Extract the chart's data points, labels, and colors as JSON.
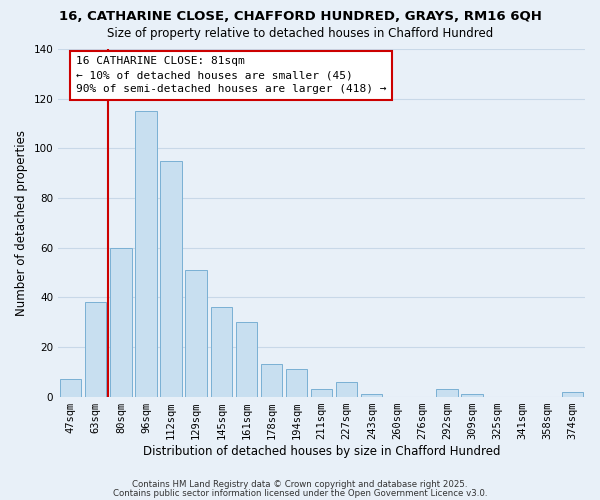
{
  "title1": "16, CATHARINE CLOSE, CHAFFORD HUNDRED, GRAYS, RM16 6QH",
  "title2": "Size of property relative to detached houses in Chafford Hundred",
  "xlabel": "Distribution of detached houses by size in Chafford Hundred",
  "ylabel": "Number of detached properties",
  "bar_labels": [
    "47sqm",
    "63sqm",
    "80sqm",
    "96sqm",
    "112sqm",
    "129sqm",
    "145sqm",
    "161sqm",
    "178sqm",
    "194sqm",
    "211sqm",
    "227sqm",
    "243sqm",
    "260sqm",
    "276sqm",
    "292sqm",
    "309sqm",
    "325sqm",
    "341sqm",
    "358sqm",
    "374sqm"
  ],
  "bar_values": [
    7,
    38,
    60,
    115,
    95,
    51,
    36,
    30,
    13,
    11,
    3,
    6,
    1,
    0,
    0,
    3,
    1,
    0,
    0,
    0,
    2
  ],
  "bar_color": "#c8dff0",
  "bar_edge_color": "#7ab0d4",
  "vline_color": "#cc0000",
  "vline_index": 2,
  "ylim": [
    0,
    140
  ],
  "yticks": [
    0,
    20,
    40,
    60,
    80,
    100,
    120,
    140
  ],
  "annotation_title": "16 CATHARINE CLOSE: 81sqm",
  "annotation_line1": "← 10% of detached houses are smaller (45)",
  "annotation_line2": "90% of semi-detached houses are larger (418) →",
  "footer1": "Contains HM Land Registry data © Crown copyright and database right 2025.",
  "footer2": "Contains public sector information licensed under the Open Government Licence v3.0.",
  "background_color": "#e8f0f8",
  "grid_color": "#c8d8e8",
  "title1_fontsize": 9.5,
  "title2_fontsize": 8.5,
  "xlabel_fontsize": 8.5,
  "ylabel_fontsize": 8.5,
  "tick_fontsize": 7.5,
  "ann_fontsize": 8.0,
  "footer_fontsize": 6.2
}
